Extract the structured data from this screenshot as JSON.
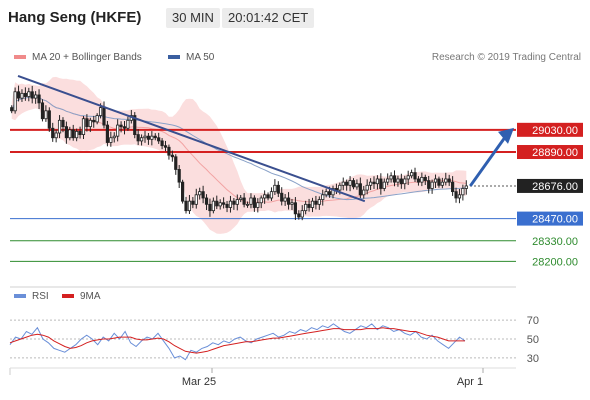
{
  "header": {
    "title": "Hang Seng (HKFE)",
    "timeframe": "30 MIN",
    "time": "20:01:42 CET"
  },
  "legend": {
    "bb_label": "MA 20 + Bollinger Bands",
    "bb_color": "#f08a8a",
    "ma50_label": "MA 50",
    "ma50_color": "#3a5fa0",
    "credit": "Research © 2019 Trading Central"
  },
  "rsi_legend": {
    "rsi_label": "RSI",
    "rsi_color": "#6a8fd8",
    "ma9_label": "9MA",
    "ma9_color": "#d42020"
  },
  "chart_data": [
    {
      "type": "candlestick",
      "ylim": [
        28070,
        29420
      ],
      "price_levels": [
        {
          "value": "29030.00",
          "kind": "resistance",
          "color": "#d42020"
        },
        {
          "value": "28890.00",
          "kind": "resistance",
          "color": "#d42020"
        },
        {
          "value": "28676.00",
          "kind": "last",
          "color": "#222222"
        },
        {
          "value": "28470.00",
          "kind": "pivot",
          "color": "#3a6fcf"
        },
        {
          "value": "28330.00",
          "kind": "support",
          "color": "#2e8b2e"
        },
        {
          "value": "28200.00",
          "kind": "support",
          "color": "#2e8b2e"
        }
      ],
      "x_ticks": [
        "Mar 25",
        "Apr 1"
      ],
      "closes": [
        29150,
        29270,
        29230,
        29260,
        29240,
        29270,
        29230,
        29250,
        29200,
        29100,
        29150,
        29040,
        28980,
        29010,
        29090,
        29050,
        28980,
        29030,
        28980,
        29020,
        29000,
        29100,
        29050,
        29090,
        29080,
        29120,
        29170,
        29060,
        28950,
        28980,
        28990,
        29060,
        29050,
        29040,
        29090,
        29120,
        29000,
        28960,
        28980,
        28990,
        28970,
        28990,
        28980,
        28960,
        28930,
        28920,
        28870,
        28860,
        28780,
        28700,
        28580,
        28520,
        28580,
        28560,
        28620,
        28640,
        28600,
        28560,
        28520,
        28580,
        28550,
        28570,
        28560,
        28540,
        28580,
        28560,
        28590,
        28600,
        28560,
        28560,
        28600,
        28540,
        28570,
        28600,
        28620,
        28600,
        28640,
        28680,
        28630,
        28580,
        28600,
        28560,
        28570,
        28500,
        28480,
        28520,
        28560,
        28540,
        28580,
        28560,
        28590,
        28620,
        28640,
        28620,
        28660,
        28650,
        28680,
        28700,
        28680,
        28710,
        28670,
        28690,
        28620,
        28650,
        28680,
        28700,
        28690,
        28720,
        28660,
        28700,
        28720,
        28740,
        28700,
        28720,
        28690,
        28720,
        28740,
        28760,
        28720,
        28700,
        28730,
        28710,
        28660,
        28700,
        28720,
        28680,
        28700,
        28720,
        28700,
        28640,
        28600,
        28620,
        28660,
        28676
      ],
      "trendline": {
        "from": [
          29370,
          0
        ],
        "to": [
          28580,
          0.6
        ]
      },
      "forecast_target": "29030.00",
      "series": [
        {
          "name": "MA 20 + Bollinger Bands"
        },
        {
          "name": "MA 50"
        }
      ]
    },
    {
      "type": "line",
      "ylim": [
        15,
        85
      ],
      "y_ticks": [
        "70",
        "50",
        "30"
      ],
      "series": [
        {
          "name": "RSI",
          "values": [
            44,
            52,
            50,
            58,
            55,
            62,
            50,
            46,
            40,
            38,
            36,
            40,
            44,
            50,
            54,
            50,
            44,
            52,
            48,
            56,
            50,
            58,
            46,
            42,
            48,
            52,
            50,
            56,
            48,
            40,
            30,
            32,
            28,
            38,
            36,
            40,
            42,
            46,
            44,
            48,
            46,
            50,
            52,
            48,
            46,
            50,
            52,
            54,
            56,
            52,
            54,
            58,
            56,
            60,
            58,
            62,
            60,
            64,
            62,
            66,
            62,
            58,
            56,
            60,
            64,
            62,
            66,
            60,
            64,
            62,
            58,
            60,
            56,
            54,
            58,
            52,
            50,
            54,
            48,
            44,
            40,
            46,
            52,
            48
          ]
        },
        {
          "name": "9MA",
          "values": [
            46,
            48,
            50,
            52,
            54,
            55,
            54,
            52,
            48,
            45,
            42,
            40,
            41,
            43,
            46,
            48,
            49,
            50,
            50,
            51,
            52,
            52,
            52,
            50,
            49,
            49,
            50,
            51,
            50,
            47,
            43,
            40,
            37,
            36,
            35,
            36,
            37,
            39,
            41,
            43,
            44,
            45,
            46,
            47,
            47,
            48,
            49,
            50,
            51,
            51,
            52,
            53,
            54,
            55,
            56,
            57,
            58,
            59,
            60,
            61,
            61,
            60,
            60,
            60,
            60,
            61,
            61,
            61,
            62,
            61,
            61,
            60,
            59,
            58,
            58,
            56,
            54,
            53,
            52,
            50,
            48,
            48,
            48,
            48
          ]
        }
      ]
    }
  ],
  "rsi_axis": {
    "ticks": [
      "70",
      "50",
      "30"
    ]
  }
}
